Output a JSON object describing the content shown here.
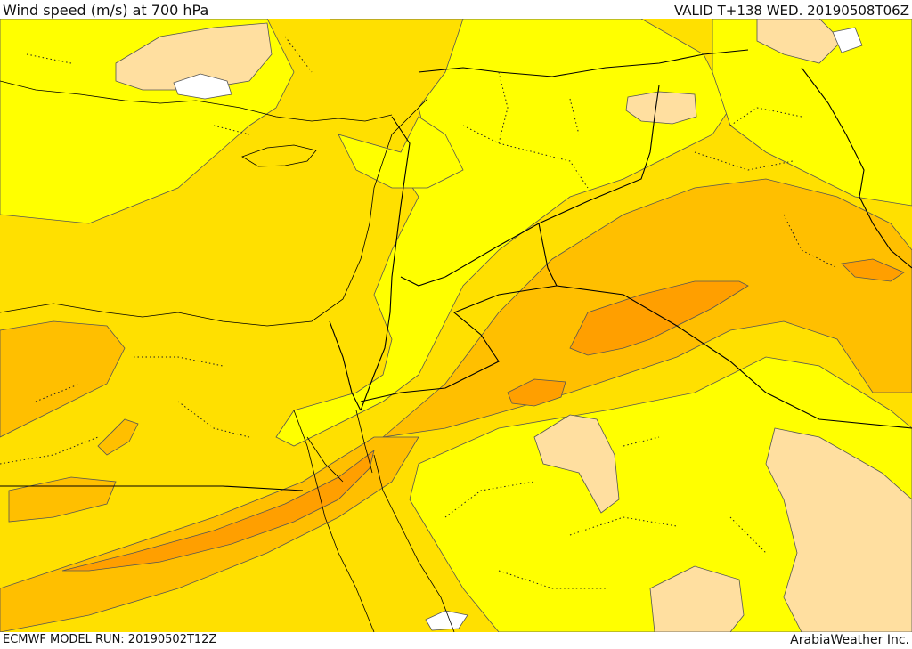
{
  "header": {
    "title": "Wind speed (m/s) at 700 hPa",
    "valid": "VALID T+138 WED. 20190508T06Z"
  },
  "footer": {
    "model_run": "ECMWF MODEL RUN: 20190502T12Z",
    "credit": "ArabiaWeather Inc."
  },
  "map": {
    "colors": {
      "wind_5_10": "#ffff00",
      "wind_10_15": "#ffe000",
      "wind_15_20": "#ffbf00",
      "wind_20_25": "#ff9f00",
      "wind_weak": "#ffdfa0",
      "wind_calm": "#ffffff",
      "contour": "#555555",
      "border": "#000000"
    }
  }
}
